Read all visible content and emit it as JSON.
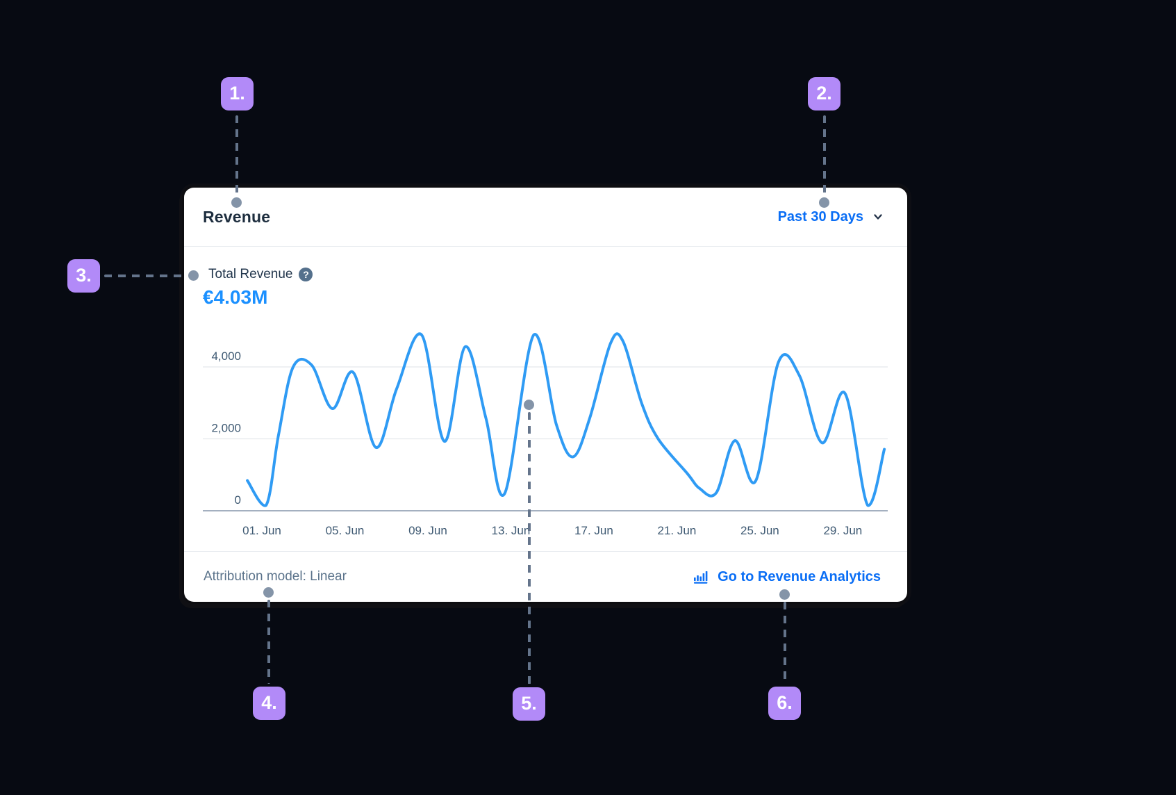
{
  "colors": {
    "accent_blue": "#0a6ef5",
    "value_blue": "#1b90ff",
    "line_blue": "#2f9bf4",
    "badge_purple": "#b28af8",
    "connector_slate": "#64748b",
    "dot_slate": "#8494a8",
    "title_ink": "#1d2d3e",
    "axis_text": "#3f5a73",
    "gridline": "#e4e8ec",
    "axis_line": "#8696ab"
  },
  "widget": {
    "title": "Revenue",
    "range_selector": {
      "label": "Past 30 Days",
      "icon": "chevron-down-icon"
    },
    "metric": {
      "label": "Total Revenue",
      "help_glyph": "?",
      "value": "€4.03M"
    },
    "footer": {
      "attribution": "Attribution model: Linear",
      "link": {
        "icon": "bar-chart-icon",
        "label": "Go to Revenue Analytics"
      }
    }
  },
  "annotations": {
    "badges": [
      {
        "label": "1.",
        "target": "widget-title"
      },
      {
        "label": "2.",
        "target": "range-selector"
      },
      {
        "label": "3.",
        "target": "metric-label"
      },
      {
        "label": "4.",
        "target": "attribution-text"
      },
      {
        "label": "5.",
        "target": "chart-line"
      },
      {
        "label": "6.",
        "target": "analytics-link"
      }
    ]
  },
  "chart_data": {
    "type": "line",
    "title": "Revenue",
    "xlabel": "",
    "ylabel": "",
    "ylim": [
      0,
      5100
    ],
    "xlim_days": [
      0.2,
      31
    ],
    "grid": "horizontal",
    "legend": "none",
    "y_ticks": [
      {
        "value": 0,
        "label": "0"
      },
      {
        "value": 2000,
        "label": "2,000"
      },
      {
        "value": 4000,
        "label": "4,000"
      }
    ],
    "x_ticks": [
      {
        "day": 1,
        "label": "01. Jun"
      },
      {
        "day": 5,
        "label": "05. Jun"
      },
      {
        "day": 9,
        "label": "09. Jun"
      },
      {
        "day": 13,
        "label": "13. Jun"
      },
      {
        "day": 17,
        "label": "17. Jun"
      },
      {
        "day": 21,
        "label": "21. Jun"
      },
      {
        "day": 25,
        "label": "25. Jun"
      },
      {
        "day": 29,
        "label": "29. Jun"
      }
    ],
    "series": [
      {
        "name": "Total Revenue",
        "points": [
          [
            0.3,
            840
          ],
          [
            1.2,
            150
          ],
          [
            1.8,
            2100
          ],
          [
            2.5,
            3990
          ],
          [
            3.4,
            4050
          ],
          [
            4.4,
            2840
          ],
          [
            5.4,
            3850
          ],
          [
            6.5,
            1760
          ],
          [
            7.5,
            3400
          ],
          [
            8.7,
            4890
          ],
          [
            9.8,
            1930
          ],
          [
            10.8,
            4560
          ],
          [
            11.8,
            2570
          ],
          [
            12.7,
            480
          ],
          [
            14.1,
            4890
          ],
          [
            15.2,
            2380
          ],
          [
            16.0,
            1500
          ],
          [
            16.8,
            2570
          ],
          [
            17.8,
            4650
          ],
          [
            18.4,
            4720
          ],
          [
            19.3,
            3000
          ],
          [
            20.1,
            2000
          ],
          [
            21.5,
            1040
          ],
          [
            22.1,
            620
          ],
          [
            22.9,
            500
          ],
          [
            23.8,
            1950
          ],
          [
            24.8,
            830
          ],
          [
            25.9,
            4140
          ],
          [
            26.9,
            3770
          ],
          [
            28.0,
            1890
          ],
          [
            29.1,
            3270
          ],
          [
            30.2,
            150
          ],
          [
            31.0,
            1710
          ]
        ]
      }
    ]
  }
}
